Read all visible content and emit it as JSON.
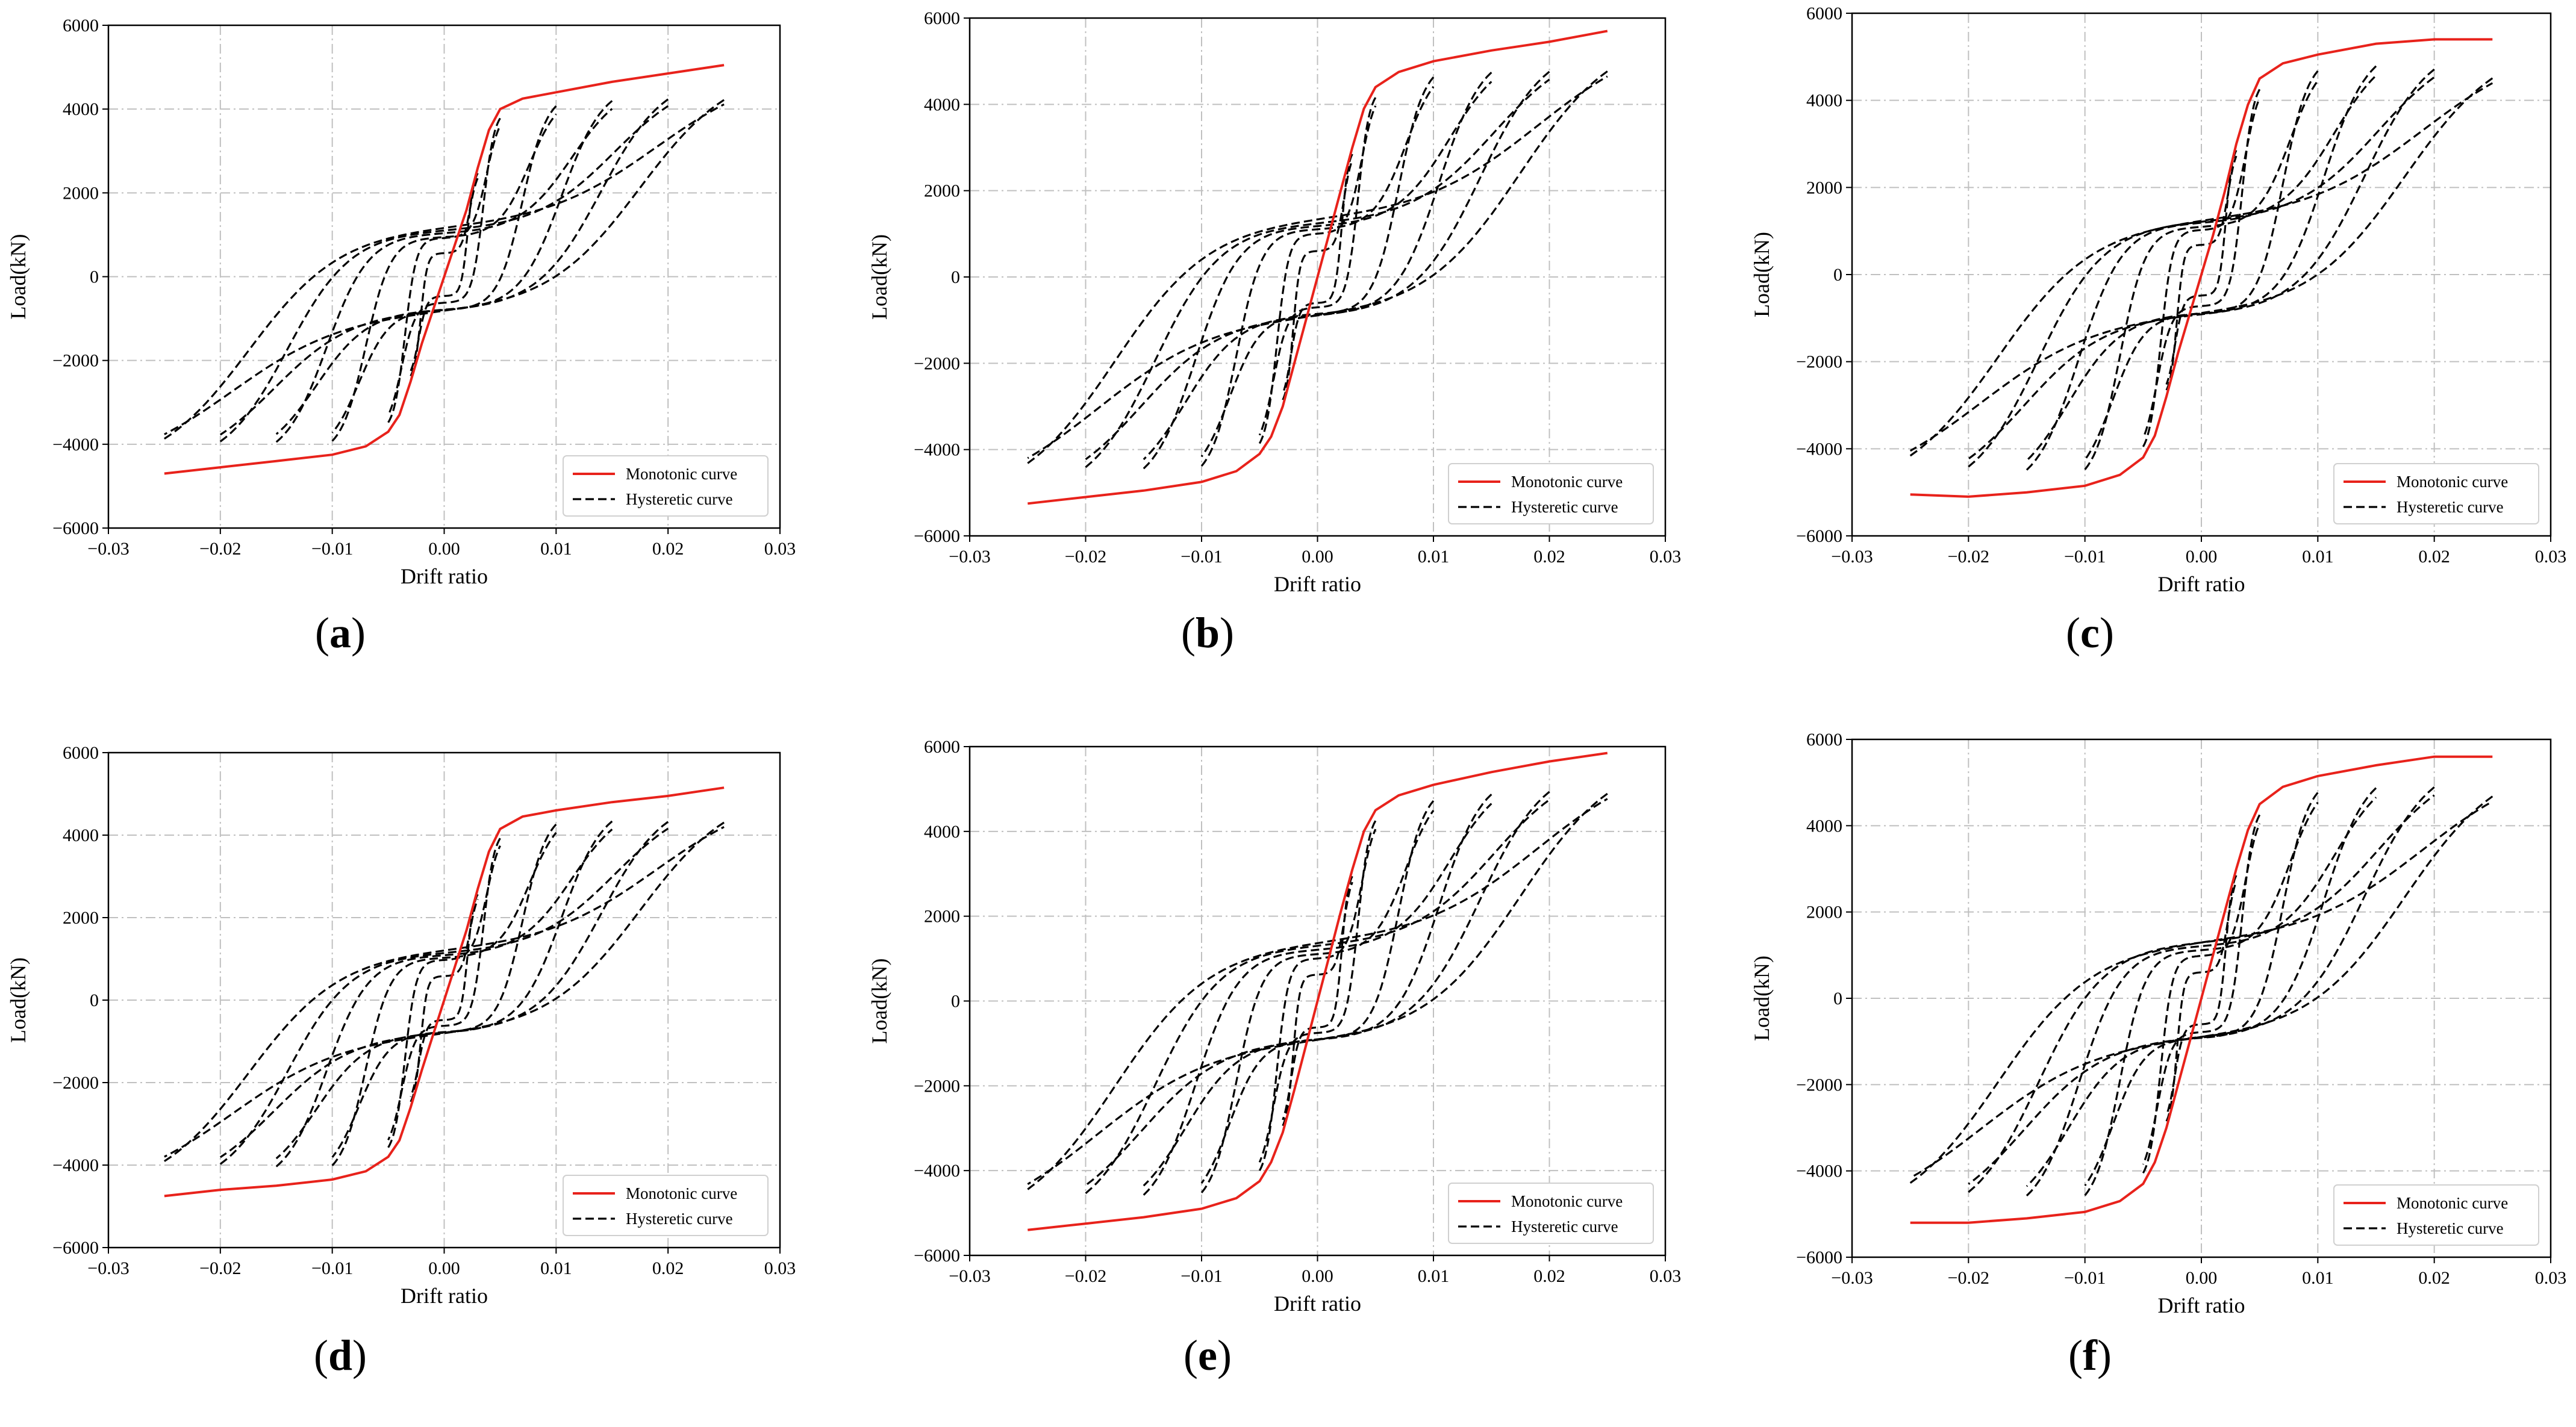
{
  "colors": {
    "monotonic": "#e8221b",
    "hysteretic": "#000000",
    "grid": "#c0c0c0",
    "legend_border": "#d0d0d0"
  },
  "chart_data": [
    {
      "panel": "a",
      "caption": "a",
      "type": "line",
      "xlabel": "Drift ratio",
      "ylabel": "Load(kN)",
      "xlim": [
        -0.03,
        0.03
      ],
      "ylim": [
        -6000,
        6000
      ],
      "xticks": [
        "−0.03",
        "−0.02",
        "−0.01",
        "0.00",
        "0.01",
        "0.02",
        "0.03"
      ],
      "yticks": [
        "6000",
        "4000",
        "2000",
        "0",
        "−2000",
        "−4000",
        "−6000"
      ],
      "grid": true,
      "legend": [
        "Monotonic curve",
        "Hysteretic curve"
      ],
      "legend_position": "lower-right",
      "curve_params": {
        "pos_ultimate": 5050,
        "neg_ultimate": -4700,
        "pos_knee": 4300,
        "neg_knee": -4200,
        "pinch": 2900
      },
      "series": [
        {
          "name": "Monotonic curve",
          "style": "solid",
          "x": [
            -0.025,
            -0.02,
            -0.015,
            -0.01,
            -0.007,
            -0.005,
            -0.004,
            -0.003,
            -0.002,
            -0.001,
            0,
            0.001,
            0.002,
            0.003,
            0.004,
            0.005,
            0.007,
            0.01,
            0.015,
            0.02,
            0.025
          ],
          "y": [
            -4700,
            -4550,
            -4400,
            -4250,
            -4050,
            -3700,
            -3300,
            -2500,
            -1600,
            -800,
            0,
            800,
            1600,
            2600,
            3500,
            4000,
            4250,
            4400,
            4650,
            4850,
            5050
          ]
        },
        {
          "name": "Hysteretic curve",
          "style": "dashed",
          "cycles": [
            0.025,
            0.02,
            0.015,
            0.01,
            0.005,
            0.003
          ]
        }
      ]
    },
    {
      "panel": "b",
      "caption": "b",
      "type": "line",
      "xlabel": "Drift ratio",
      "ylabel": "Load(kN)",
      "xlim": [
        -0.03,
        0.03
      ],
      "ylim": [
        -6000,
        6000
      ],
      "xticks": [
        "−0.03",
        "−0.02",
        "−0.01",
        "0.00",
        "0.01",
        "0.02",
        "0.03"
      ],
      "yticks": [
        "6000",
        "4000",
        "2000",
        "0",
        "−2000",
        "−4000",
        "−6000"
      ],
      "grid": true,
      "legend": [
        "Monotonic curve",
        "Hysteretic curve"
      ],
      "legend_position": "lower-right",
      "curve_params": {
        "pos_ultimate": 5700,
        "neg_ultimate": -5250,
        "pos_knee": 4800,
        "neg_knee": -4700,
        "pinch": 3200
      },
      "series": [
        {
          "name": "Monotonic curve",
          "style": "solid",
          "x": [
            -0.025,
            -0.02,
            -0.015,
            -0.01,
            -0.007,
            -0.005,
            -0.004,
            -0.003,
            -0.002,
            -0.001,
            0,
            0.001,
            0.002,
            0.003,
            0.004,
            0.005,
            0.007,
            0.01,
            0.015,
            0.02,
            0.025
          ],
          "y": [
            -5250,
            -5100,
            -4950,
            -4750,
            -4500,
            -4100,
            -3700,
            -3000,
            -2000,
            -1000,
            0,
            1000,
            2000,
            3000,
            3900,
            4400,
            4750,
            5000,
            5250,
            5450,
            5700
          ]
        },
        {
          "name": "Hysteretic curve",
          "style": "dashed",
          "cycles": [
            0.025,
            0.02,
            0.015,
            0.01,
            0.005,
            0.003
          ]
        }
      ]
    },
    {
      "panel": "c",
      "caption": "c",
      "type": "line",
      "xlabel": "Drift ratio",
      "ylabel": "Load(kN)",
      "xlim": [
        -0.03,
        0.03
      ],
      "ylim": [
        -6000,
        6000
      ],
      "xticks": [
        "−0.03",
        "−0.02",
        "−0.01",
        "0.00",
        "0.01",
        "0.02",
        "0.03"
      ],
      "yticks": [
        "6000",
        "4000",
        "2000",
        "0",
        "−2000",
        "−4000",
        "−6000"
      ],
      "grid": true,
      "legend": [
        "Monotonic curve",
        "Hysteretic curve"
      ],
      "legend_position": "lower-right",
      "curve_params": {
        "pos_ultimate": 5400,
        "neg_ultimate": -5050,
        "pos_knee": 4900,
        "neg_knee": -4700,
        "pinch": 3000
      },
      "series": [
        {
          "name": "Monotonic curve",
          "style": "solid",
          "x": [
            -0.025,
            -0.02,
            -0.015,
            -0.01,
            -0.007,
            -0.005,
            -0.004,
            -0.003,
            -0.002,
            -0.001,
            0,
            0.001,
            0.002,
            0.003,
            0.004,
            0.005,
            0.007,
            0.01,
            0.015,
            0.02,
            0.025
          ],
          "y": [
            -5050,
            -5100,
            -5000,
            -4850,
            -4600,
            -4200,
            -3700,
            -2800,
            -1800,
            -900,
            0,
            900,
            1900,
            3000,
            3900,
            4500,
            4850,
            5050,
            5300,
            5400,
            5400
          ]
        },
        {
          "name": "Hysteretic curve",
          "style": "dashed",
          "cycles": [
            0.025,
            0.02,
            0.015,
            0.01,
            0.005,
            0.003
          ]
        }
      ]
    },
    {
      "panel": "d",
      "caption": "d",
      "type": "line",
      "xlabel": "Drift ratio",
      "ylabel": "Load(kN)",
      "xlim": [
        -0.03,
        0.03
      ],
      "ylim": [
        -6000,
        6000
      ],
      "xticks": [
        "−0.03",
        "−0.02",
        "−0.01",
        "0.00",
        "0.01",
        "0.02",
        "0.03"
      ],
      "yticks": [
        "6000",
        "4000",
        "2000",
        "0",
        "−2000",
        "−4000",
        "−6000"
      ],
      "grid": true,
      "legend": [
        "Monotonic curve",
        "Hysteretic curve"
      ],
      "legend_position": "lower-right",
      "curve_params": {
        "pos_ultimate": 5150,
        "neg_ultimate": -4750,
        "pos_knee": 4500,
        "neg_knee": -4300,
        "pinch": 2900
      },
      "series": [
        {
          "name": "Monotonic curve",
          "style": "solid",
          "x": [
            -0.025,
            -0.02,
            -0.015,
            -0.01,
            -0.007,
            -0.005,
            -0.004,
            -0.003,
            -0.002,
            -0.001,
            0,
            0.001,
            0.002,
            0.003,
            0.004,
            0.005,
            0.007,
            0.01,
            0.015,
            0.02,
            0.025
          ],
          "y": [
            -4750,
            -4600,
            -4500,
            -4350,
            -4150,
            -3800,
            -3400,
            -2600,
            -1700,
            -850,
            0,
            850,
            1700,
            2700,
            3600,
            4150,
            4450,
            4600,
            4800,
            4950,
            5150
          ]
        },
        {
          "name": "Hysteretic curve",
          "style": "dashed",
          "cycles": [
            0.025,
            0.02,
            0.015,
            0.01,
            0.005,
            0.003
          ]
        }
      ]
    },
    {
      "panel": "e",
      "caption": "e",
      "type": "line",
      "xlabel": "Drift ratio",
      "ylabel": "Load(kN)",
      "xlim": [
        -0.03,
        0.03
      ],
      "ylim": [
        -6000,
        6000
      ],
      "xticks": [
        "−0.03",
        "−0.02",
        "−0.01",
        "0.00",
        "0.01",
        "0.02",
        "0.03"
      ],
      "yticks": [
        "6000",
        "4000",
        "2000",
        "0",
        "−2000",
        "−4000",
        "−6000"
      ],
      "grid": true,
      "legend": [
        "Monotonic curve",
        "Hysteretic curve"
      ],
      "legend_position": "lower-right",
      "curve_params": {
        "pos_ultimate": 5850,
        "neg_ultimate": -5400,
        "pos_knee": 4900,
        "neg_knee": -4800,
        "pinch": 3200
      },
      "series": [
        {
          "name": "Monotonic curve",
          "style": "solid",
          "x": [
            -0.025,
            -0.02,
            -0.015,
            -0.01,
            -0.007,
            -0.005,
            -0.004,
            -0.003,
            -0.002,
            -0.001,
            0,
            0.001,
            0.002,
            0.003,
            0.004,
            0.005,
            0.007,
            0.01,
            0.015,
            0.02,
            0.025
          ],
          "y": [
            -5400,
            -5250,
            -5100,
            -4900,
            -4650,
            -4250,
            -3800,
            -3100,
            -2100,
            -1050,
            0,
            1050,
            2100,
            3100,
            4000,
            4500,
            4850,
            5100,
            5400,
            5650,
            5850
          ]
        },
        {
          "name": "Hysteretic curve",
          "style": "dashed",
          "cycles": [
            0.025,
            0.02,
            0.015,
            0.01,
            0.005,
            0.003
          ]
        }
      ]
    },
    {
      "panel": "f",
      "caption": "f",
      "type": "line",
      "xlabel": "Drift ratio",
      "ylabel": "Load(kN)",
      "xlim": [
        -0.03,
        0.03
      ],
      "ylim": [
        -6000,
        6000
      ],
      "xticks": [
        "−0.03",
        "−0.02",
        "−0.01",
        "0.00",
        "0.01",
        "0.02",
        "0.03"
      ],
      "yticks": [
        "6000",
        "4000",
        "2000",
        "0",
        "−2000",
        "−4000",
        "−6000"
      ],
      "grid": true,
      "legend": [
        "Monotonic curve",
        "Hysteretic curve"
      ],
      "legend_position": "lower-right",
      "curve_params": {
        "pos_ultimate": 5500,
        "neg_ultimate": -5500,
        "pos_knee": 5000,
        "neg_knee": -4900,
        "pinch": 3100
      },
      "series": [
        {
          "name": "Monotonic curve",
          "style": "solid",
          "x": [
            -0.025,
            -0.02,
            -0.015,
            -0.01,
            -0.007,
            -0.005,
            -0.004,
            -0.003,
            -0.002,
            -0.001,
            0,
            0.001,
            0.002,
            0.003,
            0.004,
            0.005,
            0.007,
            0.01,
            0.015,
            0.02,
            0.025
          ],
          "y": [
            -5200,
            -5200,
            -5100,
            -4950,
            -4700,
            -4300,
            -3800,
            -3000,
            -2000,
            -1000,
            0,
            1000,
            2000,
            3000,
            3900,
            4500,
            4900,
            5150,
            5400,
            5600,
            5600
          ]
        },
        {
          "name": "Hysteretic curve",
          "style": "dashed",
          "cycles": [
            0.025,
            0.02,
            0.015,
            0.01,
            0.005,
            0.003
          ]
        }
      ]
    }
  ]
}
